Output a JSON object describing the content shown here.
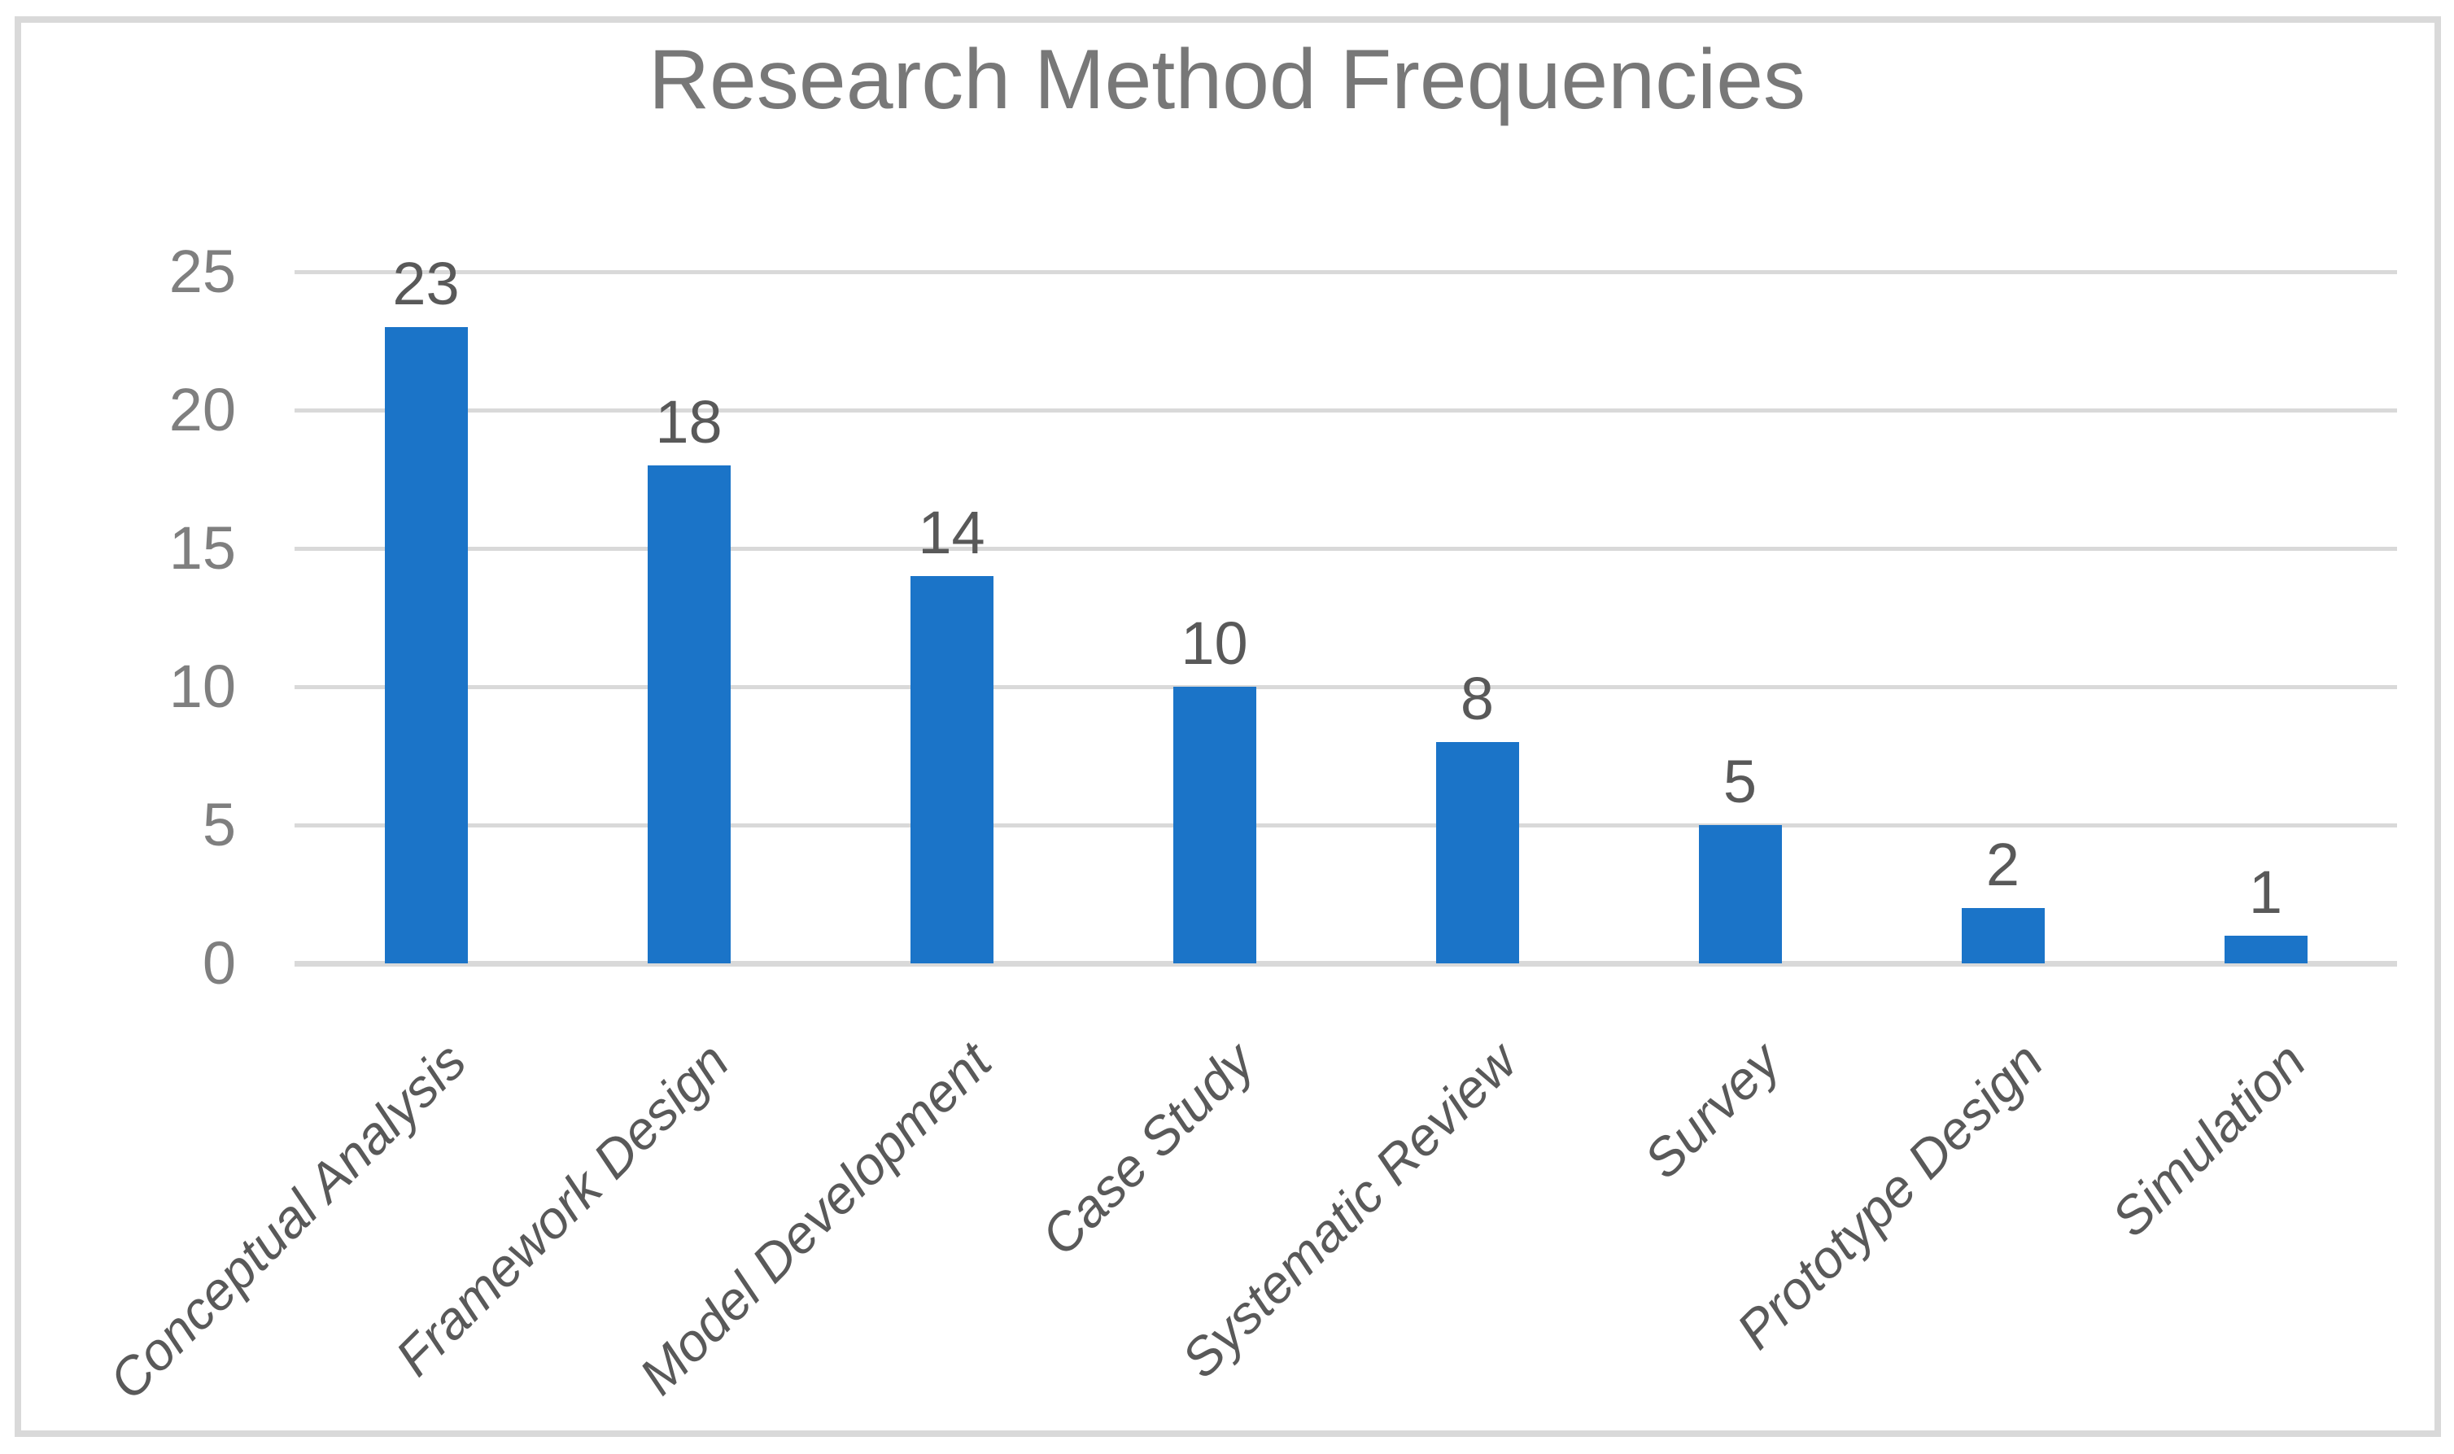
{
  "chart_data": {
    "type": "bar",
    "title": "Research Method Frequencies",
    "categories": [
      "Conceptual Analysis",
      "Framework Design",
      "Model Development",
      "Case Study",
      "Systematic Review",
      "Survey",
      "Prototype Design",
      "Simulation"
    ],
    "values": [
      23,
      18,
      14,
      10,
      8,
      5,
      2,
      1
    ],
    "data_labels": [
      23,
      18,
      14,
      10,
      8,
      5,
      2,
      1
    ],
    "xlabel": "",
    "ylabel": "",
    "ylim": [
      0,
      25
    ],
    "yticks": [
      0,
      5,
      10,
      15,
      20,
      25
    ],
    "grid": "horizontal",
    "legend": "none",
    "bar_orientation": "vertical",
    "category_label_rotation_deg": 45,
    "category_label_style": "italic"
  },
  "colors": {
    "bar": "#1B74C8",
    "gridline": "#D9D9D9",
    "frame_border": "#D9D9D9",
    "title_text": "#787878",
    "tick_text": "#7F7F7F",
    "label_text": "#595959",
    "background": "#FFFFFF"
  }
}
